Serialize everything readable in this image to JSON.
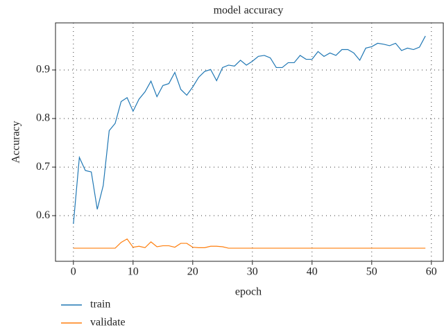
{
  "chart_data": {
    "type": "line",
    "title": "model accuracy",
    "x_label": "epoch",
    "y_label": "Accuracy",
    "x": [
      0,
      1,
      2,
      3,
      4,
      5,
      6,
      7,
      8,
      9,
      10,
      11,
      12,
      13,
      14,
      15,
      16,
      17,
      18,
      19,
      20,
      21,
      22,
      23,
      24,
      25,
      26,
      27,
      28,
      29,
      30,
      31,
      32,
      33,
      34,
      35,
      36,
      37,
      38,
      39,
      40,
      41,
      42,
      43,
      44,
      45,
      46,
      47,
      48,
      49,
      50,
      51,
      52,
      53,
      54,
      55,
      56,
      57,
      58,
      59
    ],
    "series": [
      {
        "name": "train",
        "color": "#1f77b4",
        "values": [
          0.583,
          0.72,
          0.693,
          0.69,
          0.613,
          0.662,
          0.775,
          0.79,
          0.835,
          0.843,
          0.815,
          0.84,
          0.855,
          0.877,
          0.845,
          0.868,
          0.872,
          0.895,
          0.86,
          0.848,
          0.865,
          0.885,
          0.897,
          0.901,
          0.878,
          0.905,
          0.91,
          0.908,
          0.92,
          0.91,
          0.918,
          0.928,
          0.93,
          0.925,
          0.905,
          0.905,
          0.915,
          0.915,
          0.93,
          0.922,
          0.922,
          0.938,
          0.928,
          0.935,
          0.93,
          0.942,
          0.942,
          0.935,
          0.92,
          0.945,
          0.948,
          0.955,
          0.953,
          0.95,
          0.955,
          0.94,
          0.945,
          0.942,
          0.947,
          0.97
        ]
      },
      {
        "name": "validate",
        "color": "#ff7f0e",
        "values": [
          0.533,
          0.533,
          0.533,
          0.533,
          0.533,
          0.533,
          0.533,
          0.533,
          0.545,
          0.552,
          0.535,
          0.537,
          0.534,
          0.546,
          0.536,
          0.538,
          0.538,
          0.535,
          0.543,
          0.543,
          0.535,
          0.534,
          0.534,
          0.537,
          0.537,
          0.536,
          0.533,
          0.533,
          0.533,
          0.533,
          0.533,
          0.533,
          0.533,
          0.533,
          0.533,
          0.533,
          0.533,
          0.533,
          0.533,
          0.533,
          0.533,
          0.533,
          0.533,
          0.533,
          0.533,
          0.533,
          0.533,
          0.533,
          0.533,
          0.533,
          0.533,
          0.533,
          0.533,
          0.533,
          0.533,
          0.533,
          0.533,
          0.533,
          0.533,
          0.533
        ]
      }
    ],
    "xlim": [
      -3,
      62
    ],
    "xticks": [
      0,
      10,
      20,
      30,
      40,
      50,
      60
    ],
    "ylim": [
      0.506,
      0.997
    ],
    "yticks": [
      0.6,
      0.7,
      0.8,
      0.9
    ],
    "grid": true,
    "legend": "below"
  }
}
